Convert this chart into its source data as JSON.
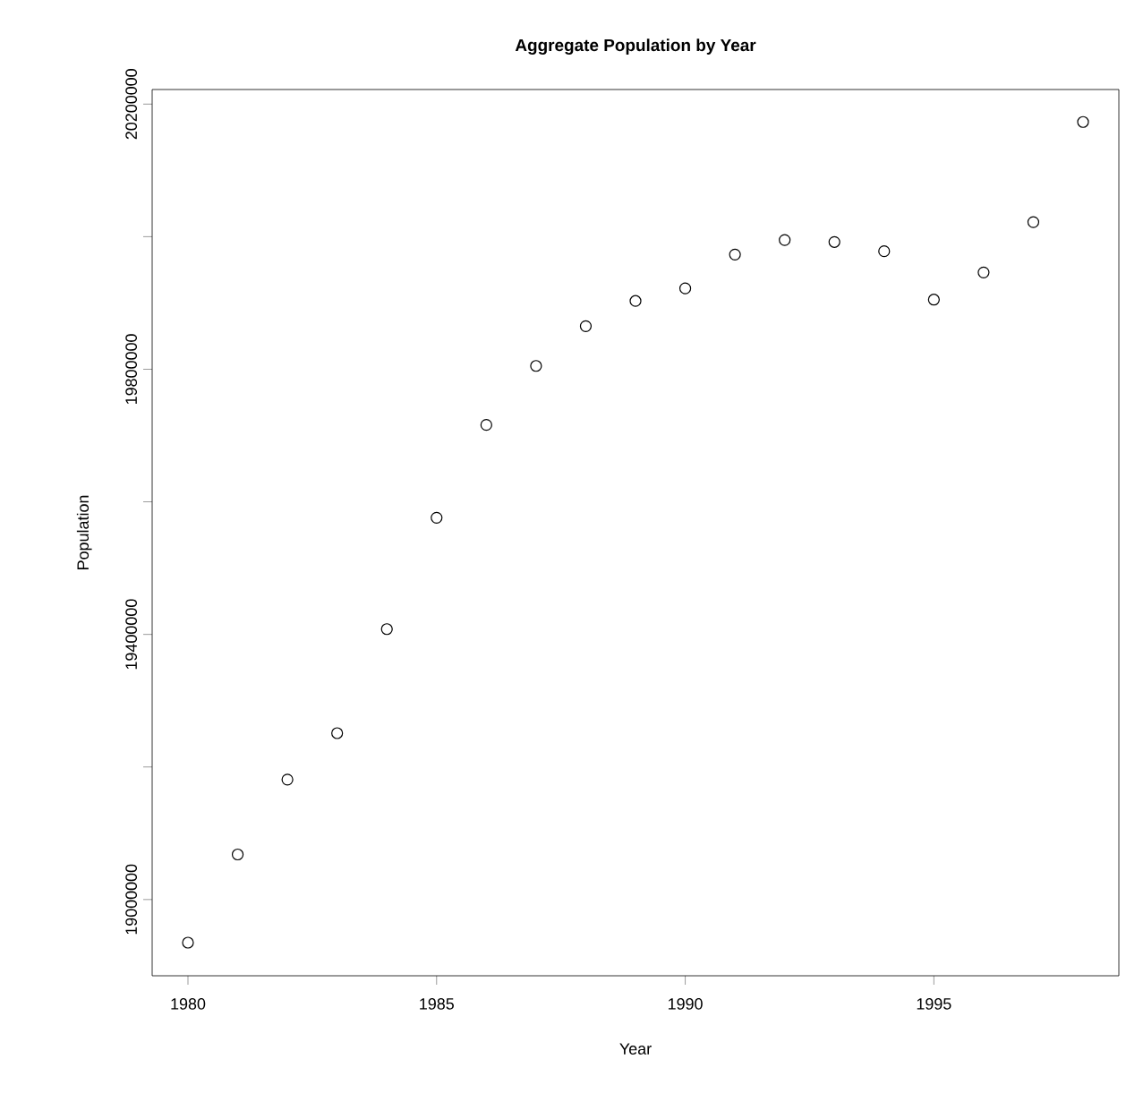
{
  "chart_data": {
    "type": "scatter",
    "title": "Aggregate Population by Year",
    "xlabel": "Year",
    "ylabel": "Population",
    "x": [
      1980,
      1981,
      1982,
      1983,
      1984,
      1985,
      1986,
      1987,
      1988,
      1989,
      1990,
      1991,
      1992,
      1993,
      1994,
      1995,
      1996,
      1997,
      1998
    ],
    "values": [
      18935000,
      19068000,
      19181000,
      19251000,
      19408000,
      19576000,
      19716000,
      19805000,
      19865000,
      19903000,
      19922000,
      19973000,
      19995000,
      19992000,
      19978000,
      19905000,
      19946000,
      20022000,
      20173000
    ],
    "color": "#000000",
    "marker": "circle",
    "xlim": [
      1979.28,
      1998.72
    ],
    "ylim": [
      18885000,
      20222000
    ],
    "xticks": [
      1980,
      1985,
      1990,
      1995
    ],
    "yticks": [
      19000000,
      {
        "value": 19200000,
        "label": null
      },
      19400000,
      {
        "value": 19600000,
        "label": null
      },
      19800000,
      {
        "value": 20000000,
        "label": null
      },
      20200000
    ]
  }
}
